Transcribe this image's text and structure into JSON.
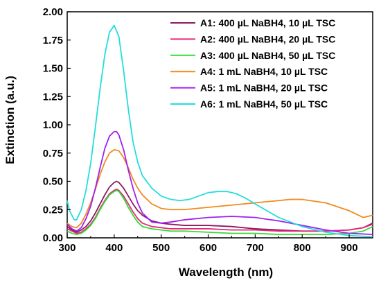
{
  "chart_data": {
    "type": "line",
    "title": "",
    "xlabel": "Wavelength (nm)",
    "ylabel": "Extinction (a.u.)",
    "xlim": [
      300,
      950
    ],
    "ylim": [
      0,
      2.0
    ],
    "xticks": [
      300,
      400,
      500,
      600,
      700,
      800,
      900
    ],
    "xtick_labels": [
      "300",
      "400",
      "500",
      "600",
      "700",
      "800",
      "900"
    ],
    "yticks": [
      0,
      0.25,
      0.5,
      0.75,
      1.0,
      1.25,
      1.5,
      1.75,
      2.0
    ],
    "ytick_labels": [
      "0.00",
      "0.25",
      "0.50",
      "0.75",
      "1.00",
      "1.25",
      "1.50",
      "1.75",
      "2.00"
    ],
    "grid": false,
    "legend_position": "top-right",
    "series": [
      {
        "name": "A1: 400 µL NaBH4, 10 µL TSC",
        "color": "#8B1A5E",
        "x": [
          300,
          310,
          320,
          330,
          340,
          350,
          360,
          370,
          380,
          390,
          400,
          405,
          410,
          420,
          430,
          440,
          450,
          460,
          480,
          500,
          520,
          550,
          600,
          650,
          700,
          750,
          800,
          850,
          900,
          930,
          950
        ],
        "y": [
          0.1,
          0.07,
          0.05,
          0.07,
          0.1,
          0.15,
          0.22,
          0.3,
          0.38,
          0.45,
          0.49,
          0.5,
          0.49,
          0.44,
          0.37,
          0.3,
          0.24,
          0.2,
          0.15,
          0.13,
          0.12,
          0.11,
          0.11,
          0.1,
          0.08,
          0.07,
          0.06,
          0.06,
          0.07,
          0.09,
          0.13
        ]
      },
      {
        "name": "A2: 400 µL NaBH4, 20 µL TSC",
        "color": "#E8277A",
        "x": [
          300,
          310,
          320,
          330,
          340,
          350,
          360,
          370,
          380,
          390,
          400,
          405,
          410,
          420,
          430,
          440,
          450,
          460,
          480,
          500,
          520,
          550,
          600,
          650,
          700,
          750,
          800,
          850,
          900,
          930,
          950
        ],
        "y": [
          0.08,
          0.06,
          0.04,
          0.05,
          0.08,
          0.12,
          0.18,
          0.26,
          0.33,
          0.39,
          0.42,
          0.43,
          0.42,
          0.37,
          0.3,
          0.23,
          0.17,
          0.13,
          0.1,
          0.09,
          0.08,
          0.08,
          0.08,
          0.07,
          0.07,
          0.06,
          0.06,
          0.06,
          0.07,
          0.09,
          0.12
        ]
      },
      {
        "name": "A3: 400 µL NaBH4, 50 µL TSC",
        "color": "#33DD33",
        "x": [
          300,
          310,
          320,
          330,
          340,
          350,
          360,
          370,
          380,
          390,
          400,
          405,
          410,
          420,
          430,
          440,
          450,
          460,
          480,
          500,
          520,
          550,
          600,
          650,
          700,
          750,
          800,
          850,
          900,
          930,
          950
        ],
        "y": [
          0.06,
          0.04,
          0.03,
          0.04,
          0.07,
          0.11,
          0.17,
          0.25,
          0.32,
          0.38,
          0.41,
          0.42,
          0.41,
          0.35,
          0.27,
          0.2,
          0.14,
          0.1,
          0.08,
          0.07,
          0.06,
          0.06,
          0.05,
          0.04,
          0.04,
          0.03,
          0.03,
          0.03,
          0.04,
          0.06,
          0.1
        ]
      },
      {
        "name": "A4: 1 mL NaBH4, 10 µL TSC",
        "color": "#F28A1E",
        "x": [
          300,
          310,
          320,
          330,
          340,
          350,
          360,
          370,
          380,
          390,
          400,
          410,
          420,
          430,
          440,
          450,
          460,
          480,
          500,
          520,
          550,
          600,
          650,
          700,
          750,
          775,
          800,
          850,
          900,
          930,
          950
        ],
        "y": [
          0.13,
          0.1,
          0.09,
          0.13,
          0.21,
          0.31,
          0.43,
          0.56,
          0.67,
          0.75,
          0.78,
          0.77,
          0.71,
          0.62,
          0.52,
          0.44,
          0.38,
          0.3,
          0.26,
          0.25,
          0.25,
          0.27,
          0.29,
          0.31,
          0.33,
          0.34,
          0.34,
          0.31,
          0.24,
          0.18,
          0.2
        ]
      },
      {
        "name": "A5: 1 mL NaBH4, 20 µL TSC",
        "color": "#A020F0",
        "x": [
          300,
          310,
          320,
          330,
          340,
          350,
          360,
          370,
          380,
          390,
          400,
          405,
          410,
          420,
          430,
          440,
          450,
          460,
          480,
          500,
          520,
          550,
          600,
          650,
          700,
          750,
          800,
          850,
          900,
          950
        ],
        "y": [
          0.12,
          0.08,
          0.06,
          0.09,
          0.17,
          0.28,
          0.44,
          0.62,
          0.79,
          0.9,
          0.94,
          0.94,
          0.91,
          0.78,
          0.6,
          0.44,
          0.31,
          0.22,
          0.14,
          0.13,
          0.14,
          0.16,
          0.18,
          0.19,
          0.18,
          0.15,
          0.11,
          0.07,
          0.04,
          0.03
        ]
      },
      {
        "name": "A6: 1 mL NaBH4, 50 µL TSC",
        "color": "#22DDDD",
        "x": [
          300,
          305,
          315,
          320,
          330,
          340,
          350,
          360,
          370,
          380,
          390,
          400,
          410,
          420,
          430,
          440,
          450,
          460,
          480,
          500,
          520,
          540,
          560,
          580,
          600,
          620,
          640,
          660,
          680,
          700,
          750,
          800,
          850,
          900,
          950
        ],
        "y": [
          0.33,
          0.24,
          0.16,
          0.16,
          0.25,
          0.42,
          0.66,
          0.98,
          1.32,
          1.62,
          1.82,
          1.88,
          1.78,
          1.48,
          1.14,
          0.85,
          0.67,
          0.55,
          0.44,
          0.37,
          0.34,
          0.33,
          0.34,
          0.37,
          0.4,
          0.41,
          0.41,
          0.39,
          0.35,
          0.3,
          0.18,
          0.1,
          0.05,
          0.02,
          0.01
        ]
      }
    ]
  }
}
